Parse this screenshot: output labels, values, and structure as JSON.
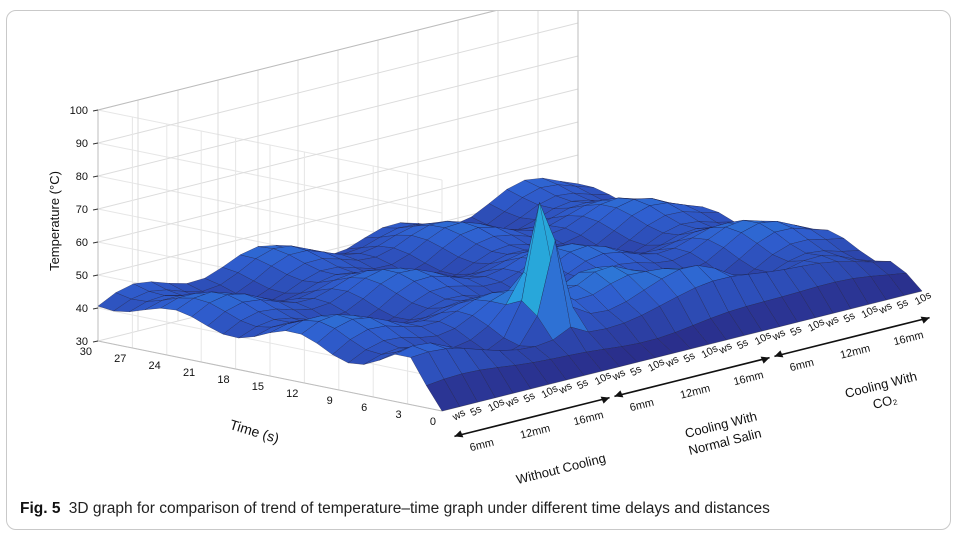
{
  "caption": {
    "label": "Fig. 5",
    "text": "3D graph for comparison of trend of temperature–time graph under different time delays and distances"
  },
  "chart_data": {
    "type": "surface3d",
    "zlabel": "Temperature (°C)",
    "ylabel": "Time (s)",
    "zlim": [
      30,
      100
    ],
    "ylim": [
      0,
      30
    ],
    "z_ticks": [
      "100",
      "90",
      "80",
      "70",
      "60",
      "50",
      "40",
      "30"
    ],
    "y_ticks": [
      "30",
      "27",
      "24",
      "21",
      "18",
      "15",
      "12",
      "9",
      "6",
      "3",
      "0"
    ],
    "groups": [
      {
        "name": "Without Cooling",
        "distances": [
          "6mm",
          "12mm",
          "16mm"
        ]
      },
      {
        "name": "Cooling With Normal Salin",
        "line1": "Cooling With",
        "line2": "Normal Salin",
        "distances": [
          "6mm",
          "12mm",
          "16mm"
        ]
      },
      {
        "name": "Cooling With CO₂",
        "line1": "Cooling With",
        "line2": "CO₂",
        "distances": [
          "6mm",
          "12mm",
          "16mm"
        ]
      }
    ],
    "delays": [
      "ws",
      "5s",
      "10s"
    ],
    "grid": true,
    "colormap": [
      "#2a2f8c",
      "#2f5fd0",
      "#2a9fe0",
      "#22c9c0",
      "#5fe08a"
    ]
  }
}
